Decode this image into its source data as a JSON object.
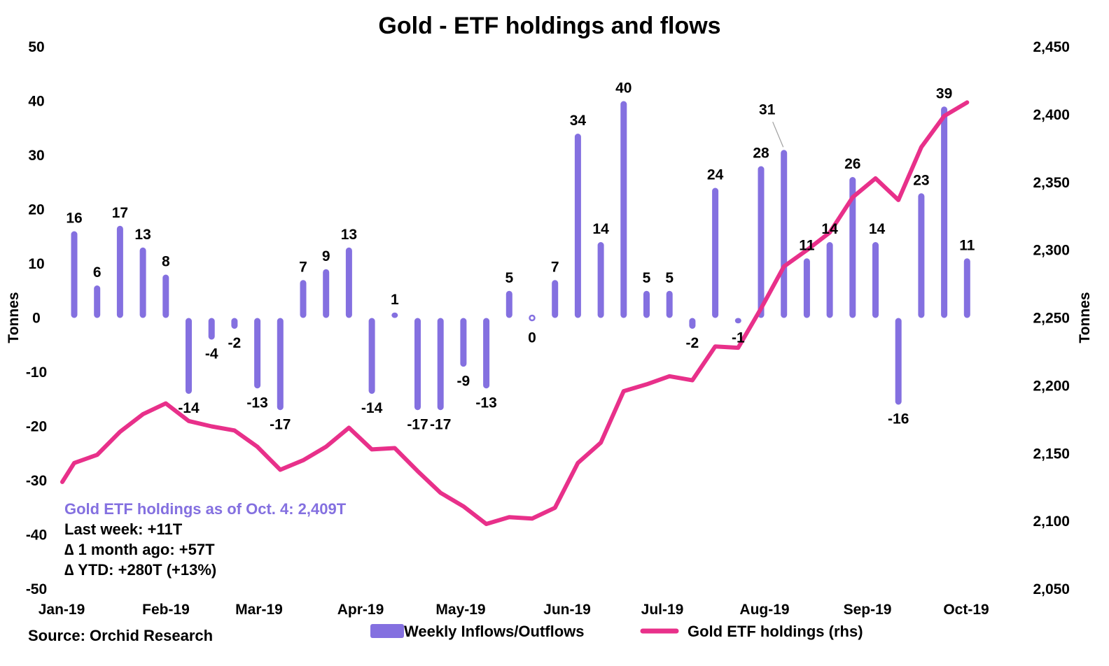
{
  "chart_data": {
    "type": "bar",
    "title": "Gold - ETF holdings and flows",
    "ylabel": "Tonnes",
    "y2label": "Tonnes",
    "ylim": [
      -50,
      50
    ],
    "yticks": [
      "50",
      "40",
      "30",
      "20",
      "10",
      "0",
      "-10",
      "-20",
      "-30",
      "-40",
      "-50"
    ],
    "y2lim": [
      2050,
      2450
    ],
    "y2ticks": [
      "2,450",
      "2,400",
      "2,350",
      "2,300",
      "2,250",
      "2,200",
      "2,150",
      "2,100",
      "2,050"
    ],
    "x_month_labels": [
      "Jan-19",
      "Feb-19",
      "Mar-19",
      "Apr-19",
      "May-19",
      "Jun-19",
      "Jul-19",
      "Aug-19",
      "Sep-19",
      "Oct-19"
    ],
    "grid": false,
    "legend_position": "bottom",
    "series": [
      {
        "name": "Weekly Inflows/Outflows",
        "type": "bar",
        "color": "#8470e0",
        "values": [
          16,
          6,
          17,
          13,
          8,
          -14,
          -4,
          -2,
          -13,
          -17,
          7,
          9,
          13,
          -14,
          1,
          -17,
          -17,
          -9,
          -13,
          5,
          0,
          7,
          34,
          14,
          40,
          5,
          5,
          -2,
          24,
          -1,
          28,
          31,
          11,
          14,
          26,
          14,
          -16,
          23,
          39,
          11
        ],
        "labels": [
          "16",
          "6",
          "17",
          "13",
          "8",
          "-14",
          "-4",
          "-2",
          "-13",
          "-17",
          "7",
          "9",
          "13",
          "-14",
          "1",
          "-17",
          "-17",
          "-9",
          "-13",
          "5",
          "0",
          "7",
          "34",
          "14",
          "40",
          "5",
          "5",
          "-2",
          "24",
          "-1",
          "28",
          "31",
          "11",
          "14",
          "26",
          "14",
          "-16",
          "23",
          "39",
          "11"
        ]
      },
      {
        "name": "Gold ETF holdings (rhs)",
        "type": "line",
        "axis": "right",
        "color": "#e8308a",
        "values": [
          2129,
          2143,
          2149,
          2166,
          2179,
          2187,
          2174,
          2170,
          2167,
          2155,
          2138,
          2145,
          2155,
          2169,
          2153,
          2154,
          2137,
          2121,
          2111,
          2098,
          2103,
          2102,
          2110,
          2143,
          2158,
          2196,
          2201,
          2207,
          2204,
          2229,
          2228,
          2257,
          2288,
          2300,
          2313,
          2339,
          2353,
          2337,
          2376,
          2399,
          2409
        ]
      }
    ],
    "annotation_lines": [
      "Gold ETF holdings as of Oct. 4: 2,409T",
      "Last week: +11T",
      "∆ 1 month ago: +57T",
      "∆ YTD: +280T (+13%)"
    ],
    "annotation_highlight_color": "#8470e0",
    "source": "Source: Orchid Research"
  }
}
